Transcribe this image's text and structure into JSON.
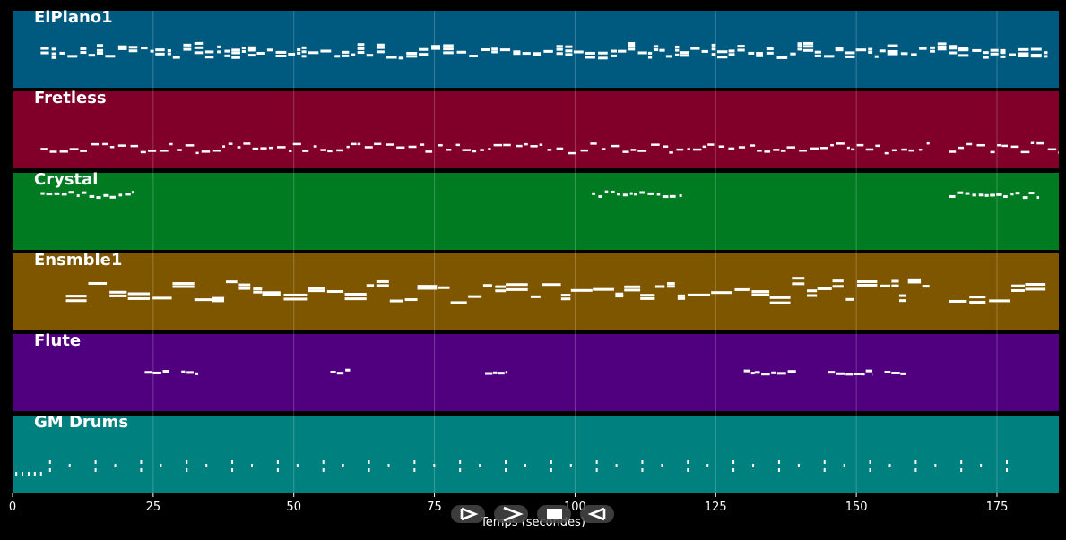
{
  "piano_roll": {
    "x_axis": {
      "label": "Temps (secondes)",
      "range": [
        0,
        186
      ],
      "ticks": [
        {
          "value": 0,
          "label": "0"
        },
        {
          "value": 25,
          "label": "25"
        },
        {
          "value": 50,
          "label": "50"
        },
        {
          "value": 75,
          "label": "75"
        },
        {
          "value": 100,
          "label": "100"
        },
        {
          "value": 125,
          "label": "125"
        },
        {
          "value": 150,
          "label": "150"
        },
        {
          "value": 175,
          "label": "175"
        }
      ]
    },
    "tracks": [
      {
        "name": "ElPiano1",
        "color": "#005a80"
      },
      {
        "name": "Fretless",
        "color": "#800029"
      },
      {
        "name": "Crystal",
        "color": "#007b22"
      },
      {
        "name": "Ensmble1",
        "color": "#7f5600"
      },
      {
        "name": "Flute",
        "color": "#50007f"
      },
      {
        "name": "GM Drums",
        "color": "#00807f"
      }
    ]
  },
  "controls": [
    {
      "name": "play",
      "icon": "play-icon"
    },
    {
      "name": "forward",
      "icon": "forward-icon"
    },
    {
      "name": "stop",
      "icon": "stop-icon"
    },
    {
      "name": "rewind",
      "icon": "rewind-icon"
    }
  ]
}
